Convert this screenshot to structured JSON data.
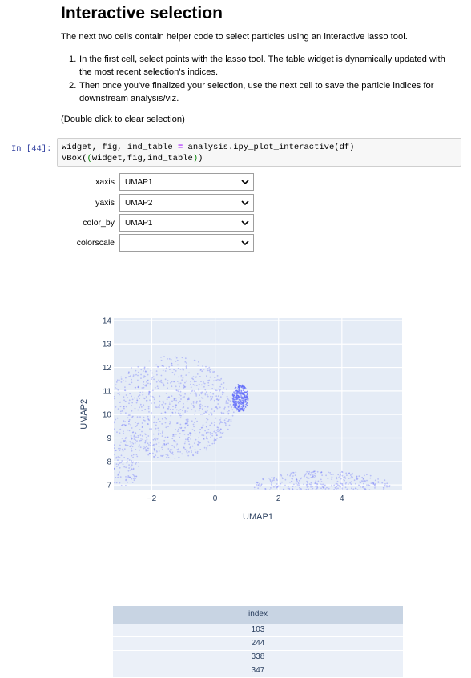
{
  "markdown": {
    "title": "Interactive selection",
    "intro": "The next two cells contain helper code to select particles using an interactive lasso tool.",
    "steps": [
      {
        "num": "1.",
        "line1": "In the first cell, select points with the lasso tool. The table widget is dynamically updated with",
        "line2": "the most recent selection's indices."
      },
      {
        "num": "2.",
        "line1": "Then once you've finalized your selection, use the next cell to save the particle indices for",
        "line2": "downstream analysis/viz."
      }
    ],
    "note": "(Double click to clear selection)"
  },
  "cell": {
    "prompt": "In [44]:",
    "line1_a": "widget, fig, ind_table ",
    "line1_op": "=",
    "line1_b": " analysis.ipy_plot_interactive(df)",
    "line2_a": "VBox(",
    "line2_p1": "(",
    "line2_b": "widget,fig,ind_table",
    "line2_p2": ")",
    "line2_c": ")"
  },
  "widgets": [
    {
      "label": "xaxis",
      "value": "UMAP1"
    },
    {
      "label": "yaxis",
      "value": "UMAP2"
    },
    {
      "label": "color_by",
      "value": "UMAP1"
    },
    {
      "label": "colorscale",
      "value": ""
    }
  ],
  "chart_data": {
    "type": "scatter",
    "xlabel": "UMAP1",
    "ylabel": "UMAP2",
    "x_ticks": [
      "−2",
      "0",
      "2",
      "4"
    ],
    "y_ticks": [
      "7",
      "8",
      "9",
      "10",
      "11",
      "12",
      "13",
      "14"
    ],
    "xlim": [
      -3.2,
      5.9
    ],
    "ylim": [
      6.8,
      14.1
    ],
    "grid": true,
    "point_color": "#636efa",
    "plot_bg": "#e5ecf6",
    "clusters": [
      {
        "cx": -1.4,
        "cy": 10.3,
        "rx": 2.0,
        "ry": 2.2
      },
      {
        "cx": 0.8,
        "cy": 10.7,
        "rx": 0.25,
        "ry": 0.6
      },
      {
        "cx": 3.4,
        "cy": 6.9,
        "rx": 2.2,
        "ry": 0.7
      },
      {
        "cx": -2.9,
        "cy": 7.9,
        "rx": 0.5,
        "ry": 1.0
      }
    ]
  },
  "table": {
    "header": "index",
    "rows": [
      "103",
      "244",
      "338",
      "347"
    ]
  }
}
